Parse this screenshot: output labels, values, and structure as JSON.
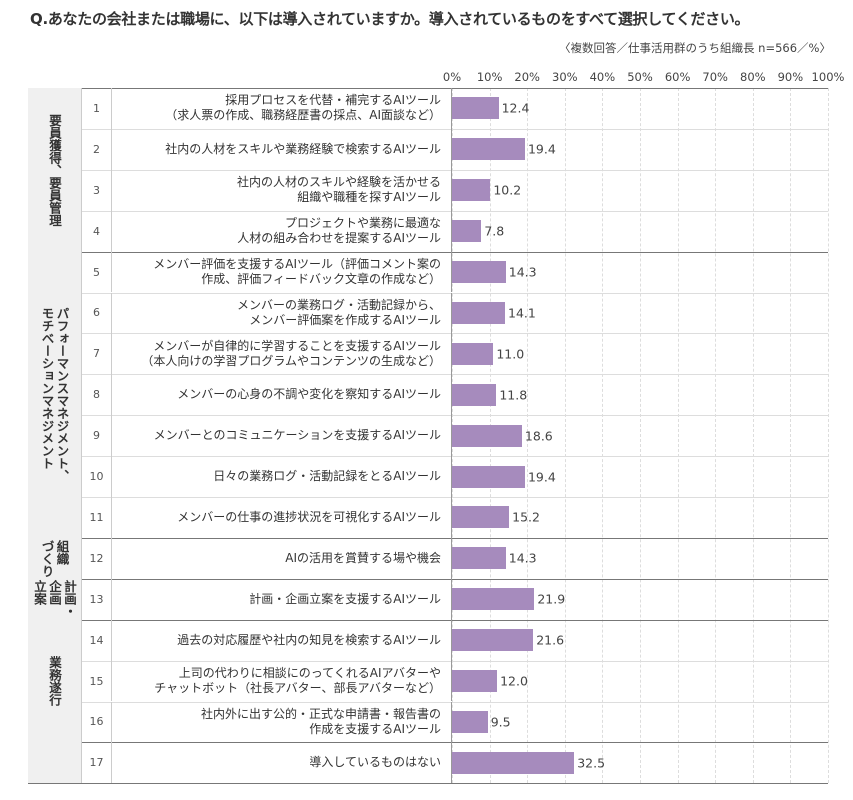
{
  "chart_data": {
    "type": "bar",
    "title": "Q.あなたの会社または職場に、以下は導入されていますか。導入されているものをすべて選択してください。",
    "subtitle": "〈複数回答／仕事活用群のうち組織長 n=566／%〉",
    "color": "#a68bbd",
    "grid": true,
    "xlim": [
      0,
      100
    ],
    "xticks": [
      {
        "value": 0,
        "label": "0%"
      },
      {
        "value": 10,
        "label": "10%"
      },
      {
        "value": 20,
        "label": "20%"
      },
      {
        "value": 30,
        "label": "30%"
      },
      {
        "value": 40,
        "label": "40%"
      },
      {
        "value": 50,
        "label": "50%"
      },
      {
        "value": 60,
        "label": "60%"
      },
      {
        "value": 70,
        "label": "70%"
      },
      {
        "value": 80,
        "label": "80%"
      },
      {
        "value": 90,
        "label": "90%"
      },
      {
        "value": 100,
        "label": "100%"
      }
    ],
    "groups": [
      {
        "label": "要員獲得、要員管理",
        "items": [
          {
            "no": 1,
            "label": "採用プロセスを代替・補完するAIツール\n（求人票の作成、職務経歴書の採点、AI面談など）",
            "value": 12.4,
            "value_label": "12.4"
          },
          {
            "no": 2,
            "label": "社内の人材をスキルや業務経験で検索するAIツール",
            "value": 19.4,
            "value_label": "19.4"
          },
          {
            "no": 3,
            "label": "社内の人材のスキルや経験を活かせる\n組織や職種を探すAIツール",
            "value": 10.2,
            "value_label": "10.2"
          },
          {
            "no": 4,
            "label": "プロジェクトや業務に最適な\n人材の組み合わせを提案するAIツール",
            "value": 7.8,
            "value_label": "7.8"
          }
        ]
      },
      {
        "label": "パフォーマンスマネジメント、\nモチベーションマネジメント",
        "items": [
          {
            "no": 5,
            "label": "メンバー評価を支援するAIツール（評価コメント案の\n作成、評価フィードバック文章の作成など）",
            "value": 14.3,
            "value_label": "14.3"
          },
          {
            "no": 6,
            "label": "メンバーの業務ログ・活動記録から、\nメンバー評価案を作成するAIツール",
            "value": 14.1,
            "value_label": "14.1"
          },
          {
            "no": 7,
            "label": "メンバーが自律的に学習することを支援するAIツール\n（本人向けの学習プログラムやコンテンツの生成など）",
            "value": 11.0,
            "value_label": "11.0"
          },
          {
            "no": 8,
            "label": "メンバーの心身の不調や変化を察知するAIツール",
            "value": 11.8,
            "value_label": "11.8"
          },
          {
            "no": 9,
            "label": "メンバーとのコミュニケーションを支援するAIツール",
            "value": 18.6,
            "value_label": "18.6"
          },
          {
            "no": 10,
            "label": "日々の業務ログ・活動記録をとるAIツール",
            "value": 19.4,
            "value_label": "19.4"
          },
          {
            "no": 11,
            "label": "メンバーの仕事の進捗状況を可視化するAIツール",
            "value": 15.2,
            "value_label": "15.2"
          }
        ]
      },
      {
        "label": "組織\nづくり",
        "items": [
          {
            "no": 12,
            "label": "AIの活用を賞賛する場や機会",
            "value": 14.3,
            "value_label": "14.3"
          }
        ]
      },
      {
        "label": "計画・\n企画\n立案",
        "items": [
          {
            "no": 13,
            "label": "計画・企画立案を支援するAIツール",
            "value": 21.9,
            "value_label": "21.9"
          }
        ]
      },
      {
        "label": "業務遂行",
        "items": [
          {
            "no": 14,
            "label": "過去の対応履歴や社内の知見を検索するAIツール",
            "value": 21.6,
            "value_label": "21.6"
          },
          {
            "no": 15,
            "label": "上司の代わりに相談にのってくれるAIアバターや\nチャットボット（社長アバター、部長アバターなど）",
            "value": 12.0,
            "value_label": "12.0"
          },
          {
            "no": 16,
            "label": "社内外に出す公的・正式な申請書・報告書の\n作成を支援するAIツール",
            "value": 9.5,
            "value_label": "9.5"
          }
        ]
      },
      {
        "label": null,
        "items": [
          {
            "no": 17,
            "label": "導入しているものはない",
            "value": 32.5,
            "value_label": "32.5"
          }
        ]
      }
    ]
  }
}
